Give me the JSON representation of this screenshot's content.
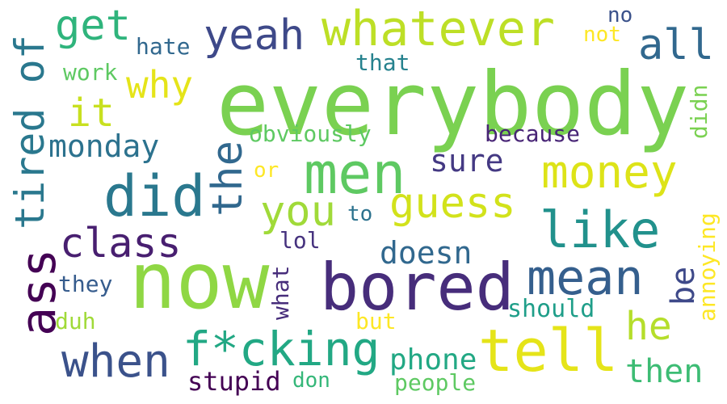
{
  "words": {
    "everybody": "everybody",
    "now": "now",
    "bored": "bored",
    "fcking": "f*cking",
    "tell": "tell",
    "men": "men",
    "did": "did",
    "whatever": "whatever",
    "money": "money",
    "like": "like",
    "ass": "ass",
    "when": "when",
    "mean": "mean",
    "tired_of": "tired of",
    "guess": "guess",
    "the": "the",
    "yeah": "yeah",
    "you": "you",
    "class": "class",
    "get": "get",
    "all": "all",
    "he": "he",
    "why": "why",
    "it": "it",
    "monday": "monday",
    "sure": "sure",
    "doesn": "doesn",
    "phone": "phone",
    "then": "then",
    "stupid": "stupid",
    "be": "be",
    "obviously": "obviously",
    "because": "because",
    "should": "should",
    "annoying": "annoying",
    "didn": "didn",
    "hate": "hate",
    "that": "that",
    "work": "work",
    "no": "no",
    "not": "not",
    "or": "or",
    "to": "to",
    "lol": "lol",
    "they": "they",
    "what": "what",
    "duh": "duh",
    "but": "but",
    "don": "don",
    "people": "people"
  },
  "colors": {
    "everybody": "#7ad151",
    "now": "#8fd744",
    "bored": "#472d7b",
    "fcking": "#22a884",
    "tell": "#e5e419",
    "men": "#5ec962",
    "did": "#2a788e",
    "whatever": "#bddf26",
    "money": "#dde318",
    "like": "#21918c",
    "ass": "#440154",
    "when": "#3b528b",
    "mean": "#355f8d",
    "tired_of": "#2a788e",
    "guess": "#d2e21b",
    "the": "#31688e",
    "yeah": "#3e4989",
    "you": "#a0da39",
    "class": "#481f70",
    "get": "#2fb47c",
    "all": "#31688e",
    "he": "#b5de2b",
    "why": "#e5e419",
    "it": "#c8e020",
    "monday": "#2c728e",
    "sure": "#443983",
    "doesn": "#31688e",
    "phone": "#22a884",
    "then": "#3dbc74",
    "stupid": "#440154",
    "be": "#3e4989",
    "obviously": "#5ec962",
    "because": "#482576",
    "should": "#1f9e89",
    "annoying": "#fde725",
    "didn": "#7ad151",
    "hate": "#31688e",
    "that": "#26828e",
    "work": "#5ec962",
    "no": "#3b528b",
    "not": "#fde725",
    "or": "#fde725",
    "to": "#2c728e",
    "lol": "#46327e",
    "they": "#365c8d",
    "what": "#472d7b",
    "duh": "#a0da39",
    "but": "#fde725",
    "don": "#35b779",
    "people": "#5ec962"
  }
}
